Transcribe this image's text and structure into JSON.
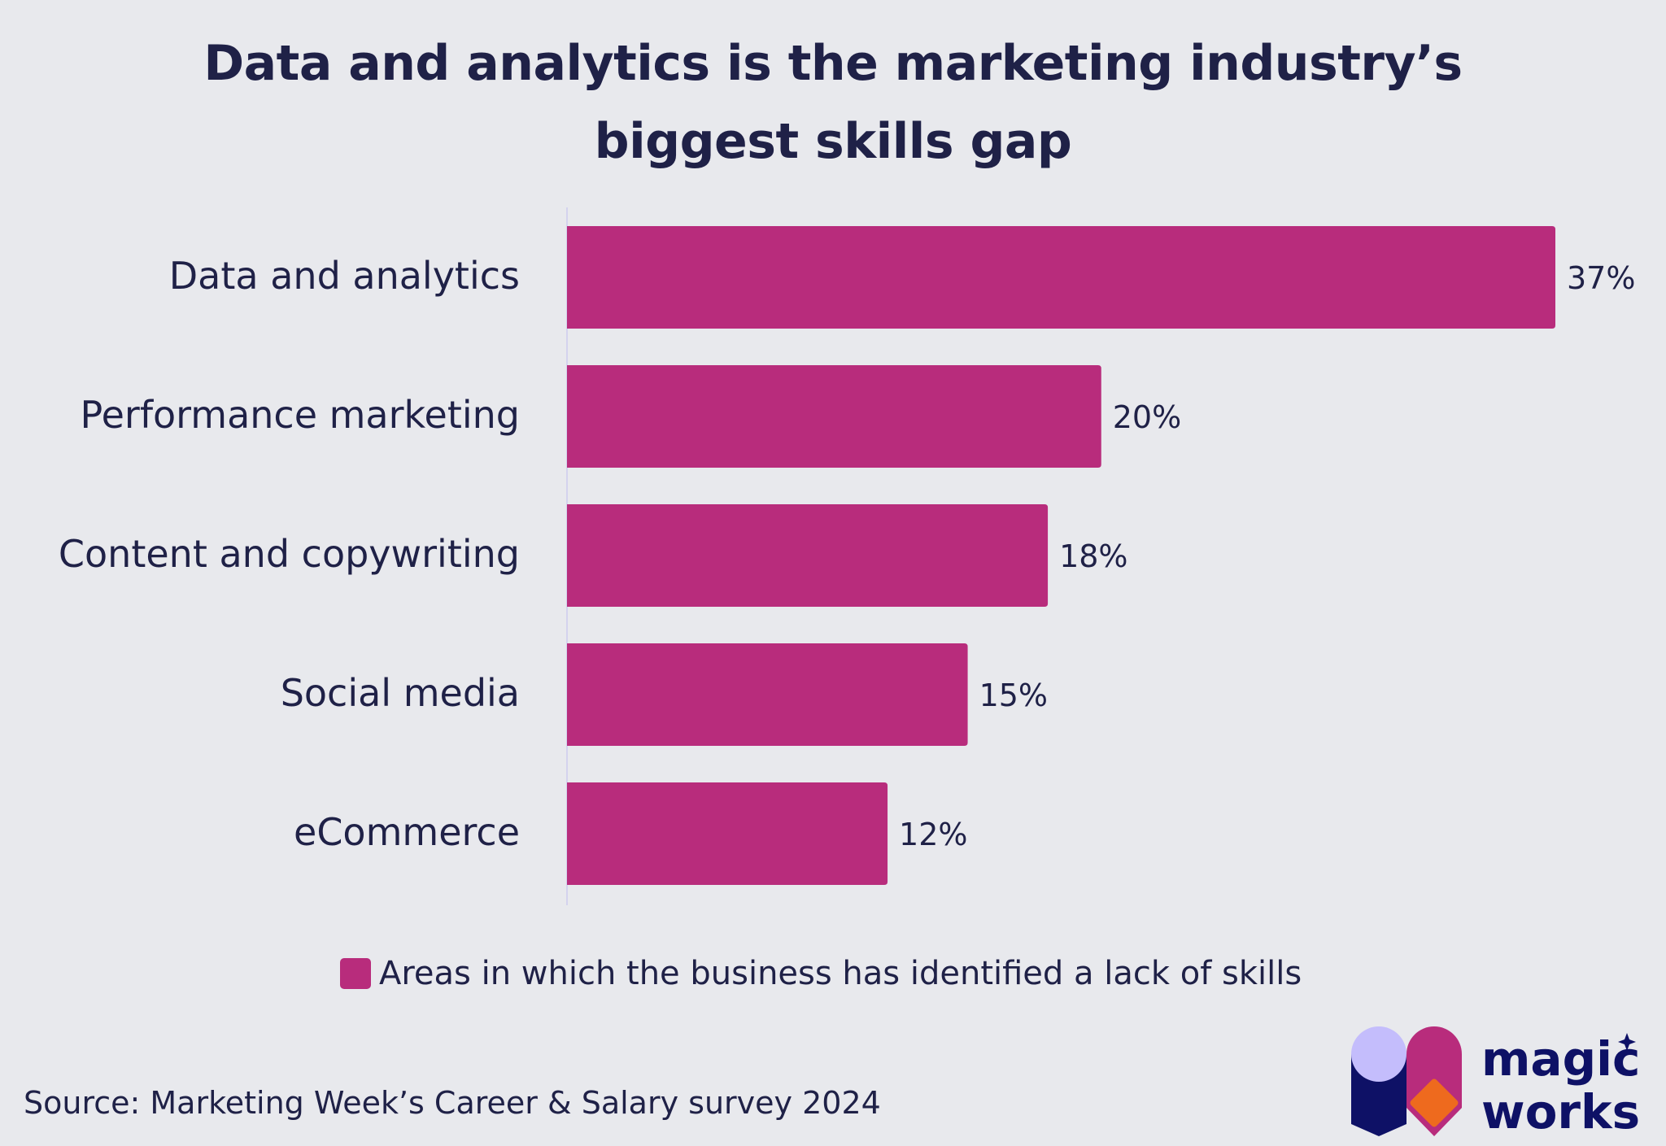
{
  "chart_data": {
    "type": "bar",
    "orientation": "horizontal",
    "title": "Data and analytics is the marketing industry’s biggest skills gap",
    "title_lines": [
      "Data and analytics is the marketing industry’s",
      "biggest skills gap"
    ],
    "categories": [
      "Data and analytics",
      "Performance marketing",
      "Content and copywriting",
      "Social media",
      "eCommerce"
    ],
    "series": [
      {
        "name": "Areas in which the business has identified a lack of skills",
        "values": [
          37,
          20,
          18,
          15,
          12
        ]
      }
    ],
    "value_labels": [
      "37%",
      "20%",
      "18%",
      "15%",
      "12%"
    ],
    "unit": "%",
    "xlim": [
      0,
      37
    ],
    "grid": false,
    "legend": "bottom",
    "bar_color": "#b82c7c",
    "text_color": "#1f2147"
  },
  "source": "Source: Marketing Week’s Career & Salary survey 2024",
  "logo": {
    "text_line1": "magic",
    "text_line2": "works",
    "colors": {
      "navy": "#0e1166",
      "lavender": "#c4bdfc",
      "magenta": "#b82c7c",
      "orange": "#ee6a1e"
    }
  }
}
